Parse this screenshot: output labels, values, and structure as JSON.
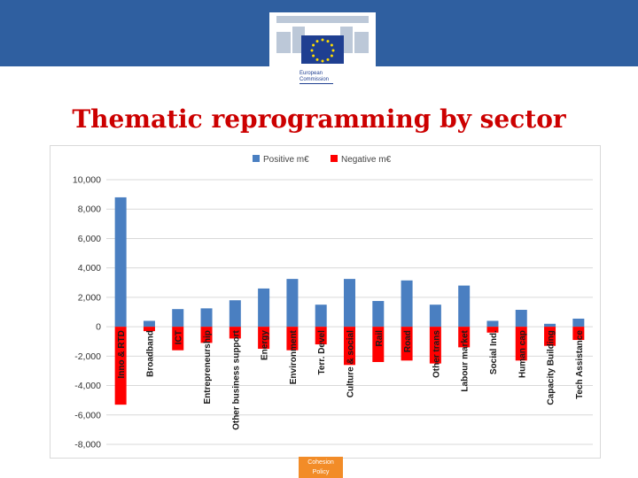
{
  "slide": {
    "title": "Thematic reprogramming by sector"
  },
  "logo": {
    "line1": "European",
    "line2": "Commission"
  },
  "footer": {
    "line1": "Cohesion",
    "line2": "Policy"
  },
  "colors": {
    "header": "#2f5fa0",
    "title": "#cc0000",
    "positive": "#4a7fc1",
    "negative": "#ff0000",
    "footer": "#f28c28"
  },
  "chart_data": {
    "type": "bar",
    "title": "",
    "xlabel": "",
    "ylabel": "",
    "ylim": [
      -8000,
      10000
    ],
    "yticks": [
      10000,
      8000,
      6000,
      4000,
      2000,
      0,
      -2000,
      -4000,
      -6000,
      -8000
    ],
    "ytick_labels": [
      "10,000",
      "8,000",
      "6,000",
      "4,000",
      "2,000",
      "0",
      "-2,000",
      "-4,000",
      "-6,000",
      "-8,000"
    ],
    "grid": true,
    "legend_position": "top",
    "categories": [
      "Inno & RTD",
      "Broadband",
      "ICT",
      "Entrepreneurship",
      "Other business support",
      "Energy",
      "Environment",
      "Terr. Devel",
      "Culture & social",
      "Rail",
      "Road",
      "Other trans",
      "Labour market",
      "Social Ind.",
      "Human cap",
      "Capacity Building",
      "Tech Assistance"
    ],
    "series": [
      {
        "name": "Positive m€",
        "color": "#4a7fc1",
        "values": [
          8800,
          400,
          1200,
          1250,
          1800,
          2600,
          3250,
          1500,
          3250,
          1750,
          3150,
          1500,
          2800,
          400,
          1150,
          200,
          550
        ]
      },
      {
        "name": "Negative m€",
        "color": "#ff0000",
        "values": [
          -5300,
          -300,
          -1600,
          -1100,
          -800,
          -1500,
          -1600,
          -1200,
          -2600,
          -2400,
          -2300,
          -2500,
          -1400,
          -400,
          -2300,
          -1300,
          -900
        ]
      }
    ]
  }
}
